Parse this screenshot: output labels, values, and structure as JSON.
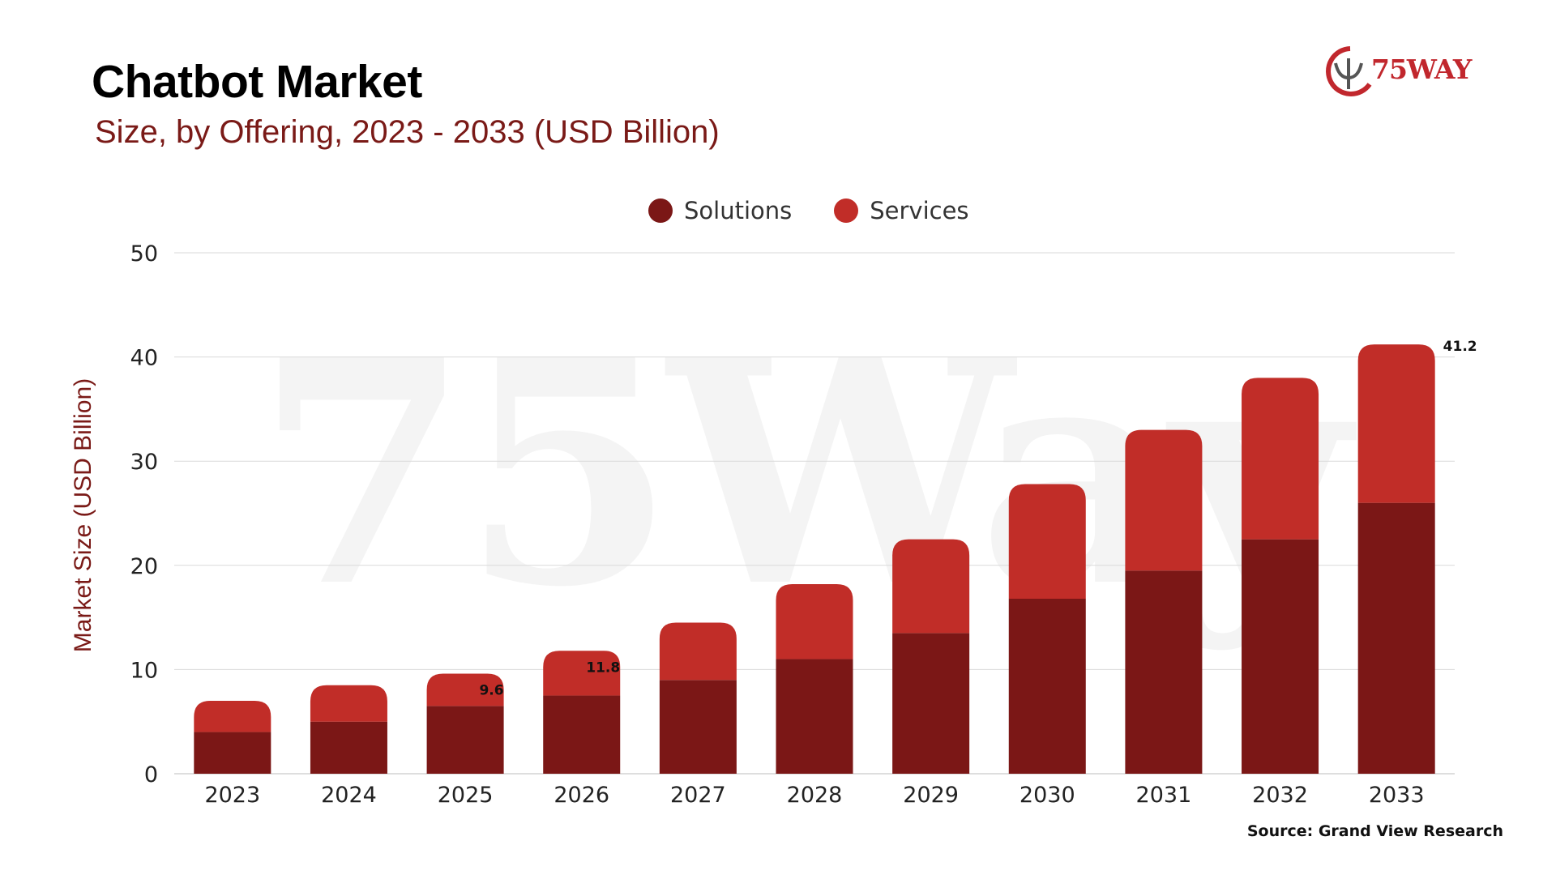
{
  "header": {
    "title": "Chatbot Market",
    "subtitle": "Size, by Offering, 2023 - 2033 (USD Billion)"
  },
  "logo": {
    "text": "75WAY",
    "icon": "75way-logo-icon"
  },
  "watermark": "75Way",
  "source": "Source: Grand View Research",
  "colors": {
    "solutions": "#7b1716",
    "services": "#c12d28",
    "title": "#000000",
    "subtitle": "#7a1a17",
    "grid": "#d9d9d9"
  },
  "chart_data": {
    "type": "bar",
    "stacked": true,
    "title": "Chatbot Market",
    "subtitle": "Size, by Offering, 2023 - 2033 (USD Billion)",
    "xlabel": "",
    "ylabel": "Market Size (USD Billion)",
    "ylim": [
      0,
      50
    ],
    "yticks": [
      0,
      10,
      20,
      30,
      40,
      50
    ],
    "grid": true,
    "legend_position": "top-center",
    "categories": [
      "2023",
      "2024",
      "2025",
      "2026",
      "2027",
      "2028",
      "2029",
      "2030",
      "2031",
      "2032",
      "2033"
    ],
    "series": [
      {
        "name": "Solutions",
        "values": [
          4.0,
          5.0,
          6.5,
          7.5,
          9.0,
          11.0,
          13.5,
          16.8,
          19.5,
          22.5,
          26.0
        ]
      },
      {
        "name": "Services",
        "values": [
          3.0,
          3.5,
          3.1,
          4.3,
          5.5,
          7.2,
          9.0,
          11.0,
          13.5,
          15.5,
          15.2
        ]
      }
    ],
    "data_labels": [
      {
        "category": "2025",
        "text": "9.6"
      },
      {
        "category": "2026",
        "text": "11.8"
      },
      {
        "category": "2033",
        "text": "41.2"
      }
    ]
  }
}
